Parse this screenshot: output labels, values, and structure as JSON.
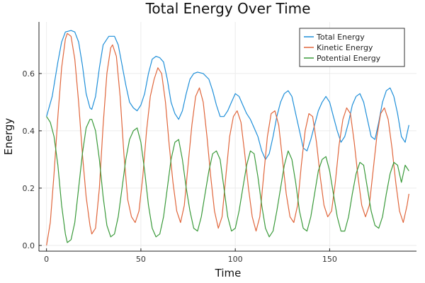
{
  "chart_data": {
    "type": "line",
    "title": "Total Energy Over Time",
    "xlabel": "Time",
    "ylabel": "Energy",
    "xlim": [
      -4,
      196
    ],
    "ylim": [
      -0.02,
      0.78
    ],
    "xticks": [
      0,
      50,
      100,
      150
    ],
    "yticks": [
      0.0,
      0.2,
      0.4,
      0.6
    ],
    "ytick_labels": [
      "0.0",
      "0.2",
      "0.4",
      "0.6"
    ],
    "grid": true,
    "legend_position": "top-right",
    "series": [
      {
        "name": "Total Energy",
        "color": "#1f8fd9",
        "points": [
          [
            0,
            0.45
          ],
          [
            3,
            0.52
          ],
          [
            6,
            0.64
          ],
          [
            8,
            0.71
          ],
          [
            10,
            0.745
          ],
          [
            13,
            0.75
          ],
          [
            15,
            0.745
          ],
          [
            17,
            0.71
          ],
          [
            19,
            0.63
          ],
          [
            21,
            0.53
          ],
          [
            23,
            0.48
          ],
          [
            24,
            0.475
          ],
          [
            26,
            0.52
          ],
          [
            28,
            0.62
          ],
          [
            30,
            0.7
          ],
          [
            33,
            0.73
          ],
          [
            36,
            0.73
          ],
          [
            38,
            0.7
          ],
          [
            40,
            0.63
          ],
          [
            42,
            0.56
          ],
          [
            44,
            0.5
          ],
          [
            46,
            0.48
          ],
          [
            48,
            0.47
          ],
          [
            50,
            0.49
          ],
          [
            52,
            0.53
          ],
          [
            54,
            0.6
          ],
          [
            56,
            0.65
          ],
          [
            58,
            0.66
          ],
          [
            60,
            0.655
          ],
          [
            62,
            0.64
          ],
          [
            64,
            0.58
          ],
          [
            66,
            0.5
          ],
          [
            68,
            0.46
          ],
          [
            70,
            0.44
          ],
          [
            72,
            0.47
          ],
          [
            74,
            0.53
          ],
          [
            76,
            0.58
          ],
          [
            78,
            0.6
          ],
          [
            80,
            0.605
          ],
          [
            83,
            0.6
          ],
          [
            86,
            0.58
          ],
          [
            88,
            0.54
          ],
          [
            90,
            0.49
          ],
          [
            92,
            0.45
          ],
          [
            94,
            0.45
          ],
          [
            96,
            0.47
          ],
          [
            98,
            0.5
          ],
          [
            100,
            0.53
          ],
          [
            102,
            0.52
          ],
          [
            104,
            0.49
          ],
          [
            106,
            0.46
          ],
          [
            108,
            0.44
          ],
          [
            110,
            0.41
          ],
          [
            112,
            0.38
          ],
          [
            114,
            0.33
          ],
          [
            116,
            0.3
          ],
          [
            118,
            0.32
          ],
          [
            120,
            0.38
          ],
          [
            122,
            0.45
          ],
          [
            124,
            0.5
          ],
          [
            126,
            0.53
          ],
          [
            128,
            0.54
          ],
          [
            130,
            0.52
          ],
          [
            132,
            0.46
          ],
          [
            134,
            0.4
          ],
          [
            136,
            0.34
          ],
          [
            138,
            0.33
          ],
          [
            140,
            0.37
          ],
          [
            142,
            0.42
          ],
          [
            144,
            0.47
          ],
          [
            146,
            0.5
          ],
          [
            148,
            0.52
          ],
          [
            150,
            0.5
          ],
          [
            152,
            0.45
          ],
          [
            154,
            0.4
          ],
          [
            156,
            0.36
          ],
          [
            158,
            0.38
          ],
          [
            160,
            0.43
          ],
          [
            162,
            0.49
          ],
          [
            164,
            0.52
          ],
          [
            166,
            0.53
          ],
          [
            168,
            0.5
          ],
          [
            170,
            0.44
          ],
          [
            172,
            0.38
          ],
          [
            174,
            0.37
          ],
          [
            176,
            0.43
          ],
          [
            178,
            0.5
          ],
          [
            180,
            0.54
          ],
          [
            182,
            0.55
          ],
          [
            184,
            0.52
          ],
          [
            186,
            0.46
          ],
          [
            188,
            0.38
          ],
          [
            190,
            0.36
          ],
          [
            192,
            0.42
          ]
        ]
      },
      {
        "name": "Kinetic Energy",
        "color": "#e0663c",
        "points": [
          [
            0,
            0.0
          ],
          [
            2,
            0.08
          ],
          [
            4,
            0.25
          ],
          [
            6,
            0.45
          ],
          [
            8,
            0.62
          ],
          [
            10,
            0.72
          ],
          [
            11,
            0.74
          ],
          [
            13,
            0.73
          ],
          [
            15,
            0.65
          ],
          [
            17,
            0.5
          ],
          [
            19,
            0.32
          ],
          [
            21,
            0.17
          ],
          [
            23,
            0.07
          ],
          [
            24,
            0.04
          ],
          [
            26,
            0.06
          ],
          [
            28,
            0.2
          ],
          [
            30,
            0.42
          ],
          [
            32,
            0.6
          ],
          [
            34,
            0.69
          ],
          [
            35,
            0.7
          ],
          [
            37,
            0.66
          ],
          [
            39,
            0.52
          ],
          [
            41,
            0.32
          ],
          [
            43,
            0.16
          ],
          [
            45,
            0.1
          ],
          [
            47,
            0.08
          ],
          [
            49,
            0.12
          ],
          [
            51,
            0.24
          ],
          [
            53,
            0.4
          ],
          [
            55,
            0.52
          ],
          [
            57,
            0.58
          ],
          [
            59,
            0.62
          ],
          [
            61,
            0.6
          ],
          [
            63,
            0.5
          ],
          [
            65,
            0.35
          ],
          [
            67,
            0.22
          ],
          [
            69,
            0.12
          ],
          [
            71,
            0.08
          ],
          [
            73,
            0.14
          ],
          [
            75,
            0.28
          ],
          [
            77,
            0.42
          ],
          [
            79,
            0.52
          ],
          [
            81,
            0.55
          ],
          [
            83,
            0.5
          ],
          [
            85,
            0.38
          ],
          [
            87,
            0.24
          ],
          [
            89,
            0.12
          ],
          [
            91,
            0.06
          ],
          [
            93,
            0.1
          ],
          [
            95,
            0.24
          ],
          [
            97,
            0.38
          ],
          [
            99,
            0.45
          ],
          [
            101,
            0.47
          ],
          [
            103,
            0.43
          ],
          [
            105,
            0.32
          ],
          [
            107,
            0.2
          ],
          [
            109,
            0.1
          ],
          [
            111,
            0.05
          ],
          [
            113,
            0.1
          ],
          [
            115,
            0.24
          ],
          [
            117,
            0.38
          ],
          [
            119,
            0.46
          ],
          [
            121,
            0.47
          ],
          [
            123,
            0.42
          ],
          [
            125,
            0.3
          ],
          [
            127,
            0.18
          ],
          [
            129,
            0.1
          ],
          [
            131,
            0.08
          ],
          [
            133,
            0.14
          ],
          [
            135,
            0.28
          ],
          [
            137,
            0.4
          ],
          [
            139,
            0.46
          ],
          [
            141,
            0.45
          ],
          [
            143,
            0.36
          ],
          [
            145,
            0.24
          ],
          [
            147,
            0.14
          ],
          [
            149,
            0.1
          ],
          [
            151,
            0.12
          ],
          [
            153,
            0.22
          ],
          [
            155,
            0.35
          ],
          [
            157,
            0.44
          ],
          [
            159,
            0.48
          ],
          [
            161,
            0.46
          ],
          [
            163,
            0.36
          ],
          [
            165,
            0.24
          ],
          [
            167,
            0.14
          ],
          [
            169,
            0.1
          ],
          [
            171,
            0.14
          ],
          [
            173,
            0.26
          ],
          [
            175,
            0.38
          ],
          [
            177,
            0.46
          ],
          [
            179,
            0.48
          ],
          [
            181,
            0.44
          ],
          [
            183,
            0.34
          ],
          [
            185,
            0.22
          ],
          [
            187,
            0.12
          ],
          [
            189,
            0.08
          ],
          [
            191,
            0.14
          ],
          [
            192,
            0.18
          ]
        ]
      },
      {
        "name": "Potential Energy",
        "color": "#3a9a3a",
        "points": [
          [
            0,
            0.45
          ],
          [
            2,
            0.43
          ],
          [
            4,
            0.38
          ],
          [
            6,
            0.28
          ],
          [
            8,
            0.14
          ],
          [
            10,
            0.04
          ],
          [
            11,
            0.01
          ],
          [
            13,
            0.02
          ],
          [
            15,
            0.08
          ],
          [
            17,
            0.2
          ],
          [
            19,
            0.32
          ],
          [
            21,
            0.41
          ],
          [
            23,
            0.44
          ],
          [
            24,
            0.44
          ],
          [
            26,
            0.4
          ],
          [
            28,
            0.3
          ],
          [
            30,
            0.17
          ],
          [
            32,
            0.07
          ],
          [
            34,
            0.03
          ],
          [
            36,
            0.04
          ],
          [
            38,
            0.1
          ],
          [
            40,
            0.2
          ],
          [
            42,
            0.3
          ],
          [
            44,
            0.37
          ],
          [
            46,
            0.4
          ],
          [
            48,
            0.41
          ],
          [
            50,
            0.36
          ],
          [
            52,
            0.26
          ],
          [
            54,
            0.14
          ],
          [
            56,
            0.06
          ],
          [
            58,
            0.03
          ],
          [
            60,
            0.04
          ],
          [
            62,
            0.1
          ],
          [
            64,
            0.2
          ],
          [
            66,
            0.3
          ],
          [
            68,
            0.36
          ],
          [
            70,
            0.37
          ],
          [
            72,
            0.3
          ],
          [
            74,
            0.2
          ],
          [
            76,
            0.12
          ],
          [
            78,
            0.06
          ],
          [
            80,
            0.05
          ],
          [
            82,
            0.1
          ],
          [
            84,
            0.18
          ],
          [
            86,
            0.26
          ],
          [
            88,
            0.32
          ],
          [
            90,
            0.33
          ],
          [
            92,
            0.3
          ],
          [
            94,
            0.2
          ],
          [
            96,
            0.1
          ],
          [
            98,
            0.05
          ],
          [
            100,
            0.06
          ],
          [
            102,
            0.12
          ],
          [
            104,
            0.2
          ],
          [
            106,
            0.28
          ],
          [
            108,
            0.33
          ],
          [
            110,
            0.32
          ],
          [
            112,
            0.24
          ],
          [
            114,
            0.14
          ],
          [
            116,
            0.06
          ],
          [
            118,
            0.03
          ],
          [
            120,
            0.05
          ],
          [
            122,
            0.12
          ],
          [
            124,
            0.2
          ],
          [
            126,
            0.28
          ],
          [
            128,
            0.33
          ],
          [
            130,
            0.3
          ],
          [
            132,
            0.22
          ],
          [
            134,
            0.12
          ],
          [
            136,
            0.06
          ],
          [
            138,
            0.05
          ],
          [
            140,
            0.1
          ],
          [
            142,
            0.18
          ],
          [
            144,
            0.26
          ],
          [
            146,
            0.3
          ],
          [
            148,
            0.31
          ],
          [
            150,
            0.26
          ],
          [
            152,
            0.18
          ],
          [
            154,
            0.1
          ],
          [
            156,
            0.05
          ],
          [
            158,
            0.05
          ],
          [
            160,
            0.1
          ],
          [
            162,
            0.18
          ],
          [
            164,
            0.25
          ],
          [
            166,
            0.29
          ],
          [
            168,
            0.28
          ],
          [
            170,
            0.2
          ],
          [
            172,
            0.12
          ],
          [
            174,
            0.07
          ],
          [
            176,
            0.06
          ],
          [
            178,
            0.1
          ],
          [
            180,
            0.18
          ],
          [
            182,
            0.25
          ],
          [
            184,
            0.29
          ],
          [
            186,
            0.28
          ],
          [
            188,
            0.22
          ],
          [
            190,
            0.28
          ],
          [
            192,
            0.26
          ]
        ]
      }
    ]
  }
}
